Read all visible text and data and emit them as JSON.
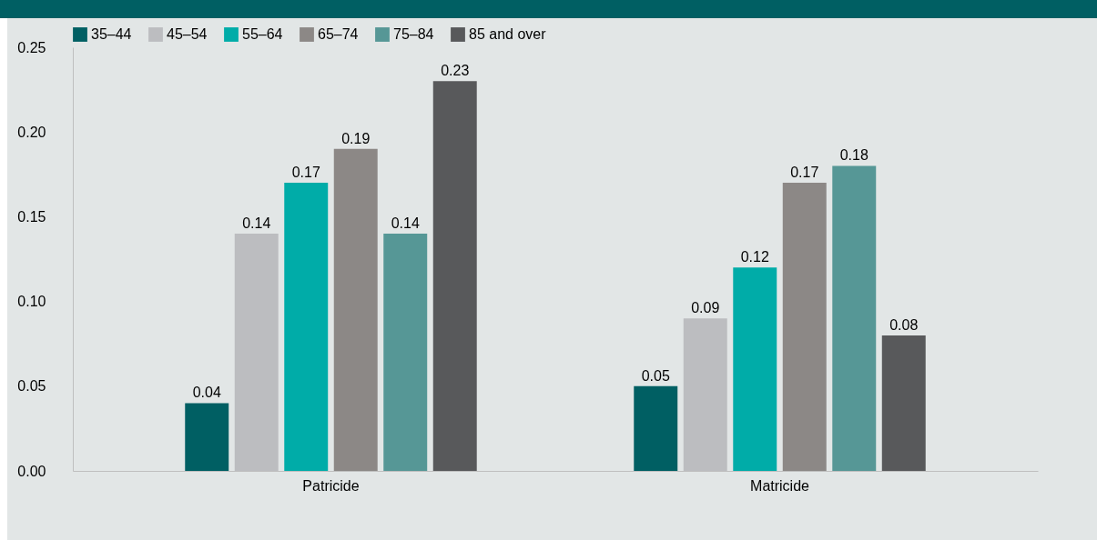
{
  "chart_data": {
    "type": "bar",
    "categories": [
      "Patricide",
      "Matricide"
    ],
    "series": [
      {
        "name": "35–44",
        "color": "#005f63",
        "values": [
          0.04,
          0.05
        ]
      },
      {
        "name": "45–54",
        "color": "#bcbdc0",
        "values": [
          0.14,
          0.09
        ]
      },
      {
        "name": "55–64",
        "color": "#00aca8",
        "values": [
          0.17,
          0.12
        ]
      },
      {
        "name": "65–74",
        "color": "#8c8886",
        "values": [
          0.19,
          0.17
        ]
      },
      {
        "name": "75–84",
        "color": "#569796",
        "values": [
          0.14,
          0.18
        ]
      },
      {
        "name": "85 and over",
        "color": "#58595b",
        "values": [
          0.23,
          0.08
        ]
      }
    ],
    "ylim": [
      0,
      0.25
    ],
    "yticks": [
      "0.00",
      "0.05",
      "0.10",
      "0.15",
      "0.20",
      "0.25"
    ],
    "data_labels": true,
    "legend": "top",
    "grid": false
  }
}
